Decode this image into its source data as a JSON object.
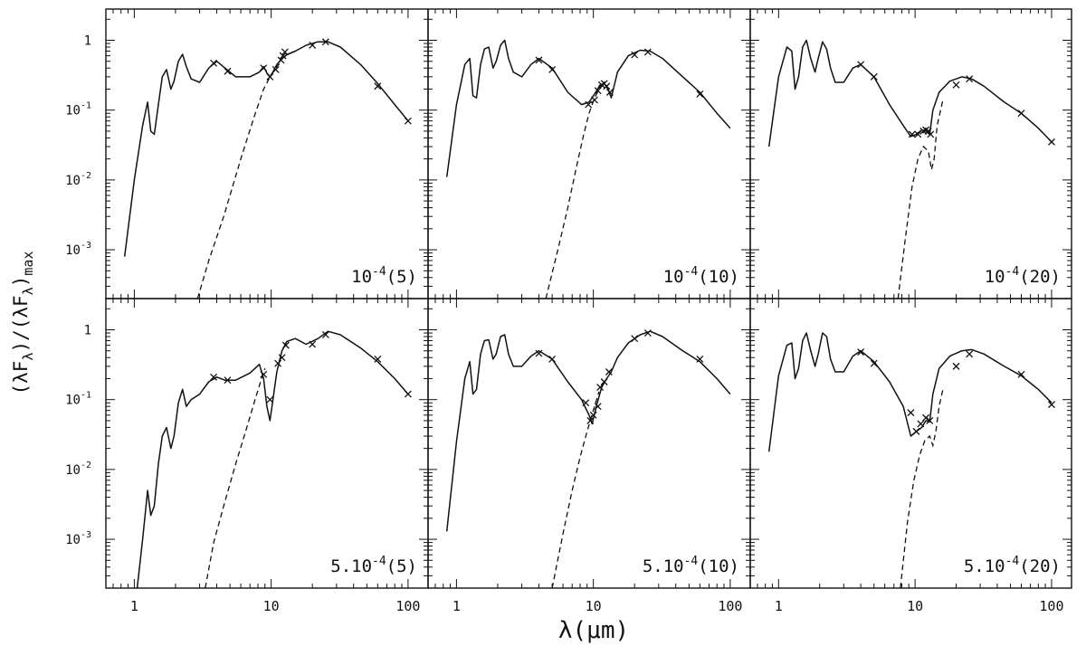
{
  "chart_data": {
    "type": "line",
    "xlabel": "λ(μm)",
    "ylabel": "(λF_λ)/(λF_λ)_max",
    "x_scale": "log",
    "y_scale": "log",
    "xlim": [
      0.62,
      140
    ],
    "ylim": [
      0.0002,
      2.8
    ],
    "x_ticks": [
      {
        "value": 1,
        "label": "1"
      },
      {
        "value": 10,
        "label": "10"
      },
      {
        "value": 100,
        "label": "100"
      }
    ],
    "y_ticks": [
      {
        "value": 1,
        "label": "1"
      },
      {
        "value": 0.1,
        "label": "10",
        "exp": "-1"
      },
      {
        "value": 0.01,
        "label": "10",
        "exp": "-2"
      },
      {
        "value": 0.001,
        "label": "10",
        "exp": "-3"
      }
    ],
    "grid": false,
    "panels": [
      {
        "label_base": "10",
        "label_exp": "-4",
        "label_tail": "(5)",
        "series": [
          {
            "style": "solid",
            "x": [
              0.85,
              1.0,
              1.15,
              1.25,
              1.32,
              1.4,
              1.5,
              1.6,
              1.72,
              1.85,
              1.95,
              2.1,
              2.25,
              2.4,
              2.6,
              3.0,
              3.5,
              4.0,
              4.6,
              5.5,
              7.0,
              8.2,
              8.8,
              9.3,
              9.8,
              10.3,
              11.0,
              12.0,
              13.0,
              15.0,
              18.0,
              22.0,
              26.0,
              32.0,
              45.0,
              60.0,
              80.0,
              100.0
            ],
            "y": [
              0.0008,
              0.01,
              0.06,
              0.13,
              0.05,
              0.045,
              0.12,
              0.3,
              0.38,
              0.2,
              0.26,
              0.5,
              0.63,
              0.42,
              0.28,
              0.25,
              0.4,
              0.5,
              0.4,
              0.3,
              0.3,
              0.35,
              0.42,
              0.34,
              0.3,
              0.35,
              0.45,
              0.55,
              0.62,
              0.7,
              0.85,
              0.95,
              0.95,
              0.8,
              0.45,
              0.24,
              0.12,
              0.07
            ]
          },
          {
            "style": "dashed",
            "x": [
              2.9,
              3.5,
              4.5,
              6.0,
              7.5,
              8.8,
              10.0,
              11.0,
              12.0
            ],
            "y": [
              0.0002,
              0.0007,
              0.003,
              0.02,
              0.08,
              0.2,
              0.32,
              0.42,
              0.5
            ]
          }
        ],
        "points": {
          "x": [
            3.8,
            4.8,
            8.8,
            9.8,
            10.8,
            11.8,
            12.2,
            12.6,
            20.0,
            25.0,
            60.0,
            100.0
          ],
          "y": [
            0.47,
            0.36,
            0.4,
            0.3,
            0.38,
            0.52,
            0.6,
            0.68,
            0.85,
            0.95,
            0.22,
            0.07
          ]
        }
      },
      {
        "label_base": "10",
        "label_exp": "-4",
        "label_tail": "(10)",
        "series": [
          {
            "style": "solid",
            "x": [
              0.85,
              1.0,
              1.15,
              1.25,
              1.32,
              1.4,
              1.5,
              1.6,
              1.72,
              1.85,
              1.95,
              2.1,
              2.25,
              2.4,
              2.6,
              3.0,
              3.5,
              4.0,
              5.0,
              6.5,
              8.2,
              9.3,
              10.2,
              11.2,
              12.0,
              12.8,
              13.5,
              15.0,
              18.0,
              22.0,
              26.0,
              32.0,
              45.0,
              60.0,
              80.0,
              100.0
            ],
            "y": [
              0.011,
              0.12,
              0.45,
              0.55,
              0.16,
              0.15,
              0.45,
              0.75,
              0.8,
              0.4,
              0.5,
              0.85,
              1.0,
              0.55,
              0.35,
              0.3,
              0.45,
              0.55,
              0.4,
              0.18,
              0.12,
              0.13,
              0.17,
              0.23,
              0.24,
              0.2,
              0.15,
              0.35,
              0.6,
              0.72,
              0.7,
              0.55,
              0.3,
              0.18,
              0.09,
              0.055
            ]
          },
          {
            "style": "dashed",
            "x": [
              4.5,
              5.5,
              6.5,
              7.5,
              8.5,
              9.3,
              10.2,
              11.2,
              12.0,
              13.0
            ],
            "y": [
              0.0002,
              0.001,
              0.004,
              0.015,
              0.045,
              0.09,
              0.15,
              0.21,
              0.23,
              0.2
            ]
          }
        ],
        "points": {
          "x": [
            4.0,
            5.0,
            9.2,
            10.2,
            10.8,
            11.5,
            12.0,
            12.5,
            13.2,
            20.0,
            25.0,
            60.0
          ],
          "y": [
            0.52,
            0.38,
            0.12,
            0.14,
            0.19,
            0.23,
            0.24,
            0.22,
            0.18,
            0.62,
            0.68,
            0.17
          ]
        }
      },
      {
        "label_base": "10",
        "label_exp": "-4",
        "label_tail": "(20)",
        "series": [
          {
            "style": "solid",
            "x": [
              0.85,
              1.0,
              1.15,
              1.25,
              1.32,
              1.4,
              1.5,
              1.6,
              1.72,
              1.85,
              1.95,
              2.1,
              2.25,
              2.4,
              2.6,
              3.0,
              3.5,
              4.0,
              5.0,
              6.5,
              8.2,
              9.3,
              10.2,
              11.2,
              12.0,
              12.8,
              13.5,
              15.0,
              18.0,
              22.0,
              26.0,
              32.0,
              45.0,
              60.0,
              80.0,
              100.0
            ],
            "y": [
              0.03,
              0.3,
              0.8,
              0.7,
              0.2,
              0.3,
              0.8,
              1.0,
              0.55,
              0.35,
              0.55,
              0.95,
              0.75,
              0.4,
              0.25,
              0.25,
              0.4,
              0.45,
              0.3,
              0.12,
              0.06,
              0.042,
              0.045,
              0.052,
              0.05,
              0.045,
              0.1,
              0.18,
              0.26,
              0.3,
              0.28,
              0.22,
              0.13,
              0.09,
              0.055,
              0.035
            ]
          },
          {
            "style": "dashed",
            "x": [
              7.5,
              8.5,
              9.5,
              10.5,
              11.5,
              12.5,
              13.2,
              13.8,
              14.5,
              16.0
            ],
            "y": [
              0.0002,
              0.0015,
              0.008,
              0.02,
              0.03,
              0.026,
              0.014,
              0.02,
              0.06,
              0.14
            ]
          }
        ],
        "points": {
          "x": [
            4.0,
            5.0,
            9.5,
            10.5,
            11.5,
            12.0,
            12.5,
            13.0,
            20.0,
            25.0,
            60.0,
            100.0
          ],
          "y": [
            0.45,
            0.3,
            0.045,
            0.045,
            0.05,
            0.052,
            0.05,
            0.045,
            0.23,
            0.28,
            0.09,
            0.035
          ]
        }
      },
      {
        "label_base": "5.10",
        "label_exp": "-4",
        "label_tail": "(5)",
        "series": [
          {
            "style": "solid",
            "x": [
              1.05,
              1.15,
              1.25,
              1.32,
              1.4,
              1.5,
              1.6,
              1.72,
              1.85,
              1.95,
              2.1,
              2.25,
              2.4,
              2.6,
              3.0,
              3.5,
              4.0,
              4.6,
              5.5,
              7.0,
              8.2,
              8.8,
              9.3,
              9.8,
              10.3,
              11.0,
              12.0,
              13.0,
              15.0,
              18.0,
              22.0,
              26.0,
              32.0,
              45.0,
              60.0,
              80.0,
              100.0
            ],
            "y": [
              0.0002,
              0.001,
              0.005,
              0.0022,
              0.003,
              0.012,
              0.03,
              0.04,
              0.02,
              0.03,
              0.09,
              0.14,
              0.08,
              0.1,
              0.12,
              0.18,
              0.21,
              0.19,
              0.19,
              0.24,
              0.32,
              0.2,
              0.08,
              0.05,
              0.1,
              0.25,
              0.5,
              0.68,
              0.75,
              0.62,
              0.75,
              0.95,
              0.85,
              0.55,
              0.35,
              0.2,
              0.12
            ]
          },
          {
            "style": "dashed",
            "x": [
              3.3,
              3.8,
              4.5,
              5.5,
              6.5,
              7.5,
              8.5,
              9.0
            ],
            "y": [
              0.0002,
              0.0009,
              0.003,
              0.012,
              0.035,
              0.09,
              0.2,
              0.28
            ]
          }
        ],
        "points": {
          "x": [
            3.8,
            4.8,
            8.8,
            9.8,
            11.2,
            12.0,
            12.8,
            20.0,
            25.0,
            60.0,
            100.0
          ],
          "y": [
            0.21,
            0.19,
            0.23,
            0.1,
            0.33,
            0.4,
            0.6,
            0.62,
            0.85,
            0.38,
            0.12
          ]
        }
      },
      {
        "label_base": "5.10",
        "label_exp": "-4",
        "label_tail": "(10)",
        "series": [
          {
            "style": "solid",
            "x": [
              0.85,
              1.0,
              1.15,
              1.25,
              1.32,
              1.4,
              1.5,
              1.6,
              1.72,
              1.85,
              1.95,
              2.1,
              2.25,
              2.4,
              2.6,
              3.0,
              3.5,
              4.0,
              5.0,
              6.5,
              8.2,
              9.3,
              9.8,
              10.5,
              11.5,
              12.5,
              13.5,
              15.0,
              18.0,
              22.0,
              26.0,
              32.0,
              45.0,
              60.0,
              80.0,
              100.0
            ],
            "y": [
              0.0013,
              0.025,
              0.2,
              0.35,
              0.12,
              0.14,
              0.45,
              0.7,
              0.72,
              0.38,
              0.45,
              0.8,
              0.85,
              0.45,
              0.3,
              0.3,
              0.42,
              0.5,
              0.38,
              0.18,
              0.1,
              0.06,
              0.045,
              0.08,
              0.15,
              0.2,
              0.25,
              0.4,
              0.65,
              0.85,
              0.95,
              0.8,
              0.5,
              0.35,
              0.2,
              0.12
            ]
          },
          {
            "style": "dashed",
            "x": [
              5.0,
              6.0,
              7.0,
              8.0,
              9.0,
              10.0,
              11.0
            ],
            "y": [
              0.0002,
              0.0012,
              0.005,
              0.015,
              0.035,
              0.07,
              0.13
            ]
          }
        ],
        "points": {
          "x": [
            4.0,
            5.0,
            8.8,
            9.5,
            10.0,
            10.8,
            11.2,
            12.0,
            13.0,
            20.0,
            25.0,
            60.0
          ],
          "y": [
            0.46,
            0.38,
            0.09,
            0.05,
            0.06,
            0.08,
            0.15,
            0.18,
            0.25,
            0.75,
            0.9,
            0.38
          ]
        }
      },
      {
        "label_base": "5.10",
        "label_exp": "-4",
        "label_tail": "(20)",
        "series": [
          {
            "style": "solid",
            "x": [
              0.85,
              1.0,
              1.15,
              1.25,
              1.32,
              1.4,
              1.5,
              1.6,
              1.72,
              1.85,
              1.95,
              2.1,
              2.25,
              2.4,
              2.6,
              3.0,
              3.5,
              4.0,
              5.0,
              6.5,
              8.2,
              9.3,
              10.2,
              11.2,
              12.0,
              12.8,
              13.5,
              15.0,
              18.0,
              22.0,
              26.0,
              32.0,
              45.0,
              60.0,
              80.0,
              100.0
            ],
            "y": [
              0.018,
              0.22,
              0.6,
              0.65,
              0.2,
              0.28,
              0.7,
              0.9,
              0.5,
              0.3,
              0.45,
              0.9,
              0.8,
              0.38,
              0.25,
              0.25,
              0.42,
              0.5,
              0.35,
              0.18,
              0.08,
              0.03,
              0.035,
              0.04,
              0.05,
              0.048,
              0.12,
              0.28,
              0.42,
              0.5,
              0.52,
              0.45,
              0.3,
              0.22,
              0.14,
              0.09
            ]
          },
          {
            "style": "dashed",
            "x": [
              7.8,
              8.8,
              9.8,
              10.8,
              11.8,
              12.8,
              13.5,
              14.2,
              15.0,
              16.0
            ],
            "y": [
              0.0002,
              0.0018,
              0.007,
              0.016,
              0.026,
              0.03,
              0.022,
              0.035,
              0.08,
              0.14
            ]
          }
        ],
        "points": {
          "x": [
            4.0,
            5.0,
            9.3,
            10.2,
            11.0,
            12.0,
            12.8,
            20.0,
            25.0,
            60.0,
            100.0
          ],
          "y": [
            0.48,
            0.33,
            0.065,
            0.035,
            0.045,
            0.055,
            0.05,
            0.3,
            0.45,
            0.23,
            0.085
          ]
        }
      }
    ]
  }
}
